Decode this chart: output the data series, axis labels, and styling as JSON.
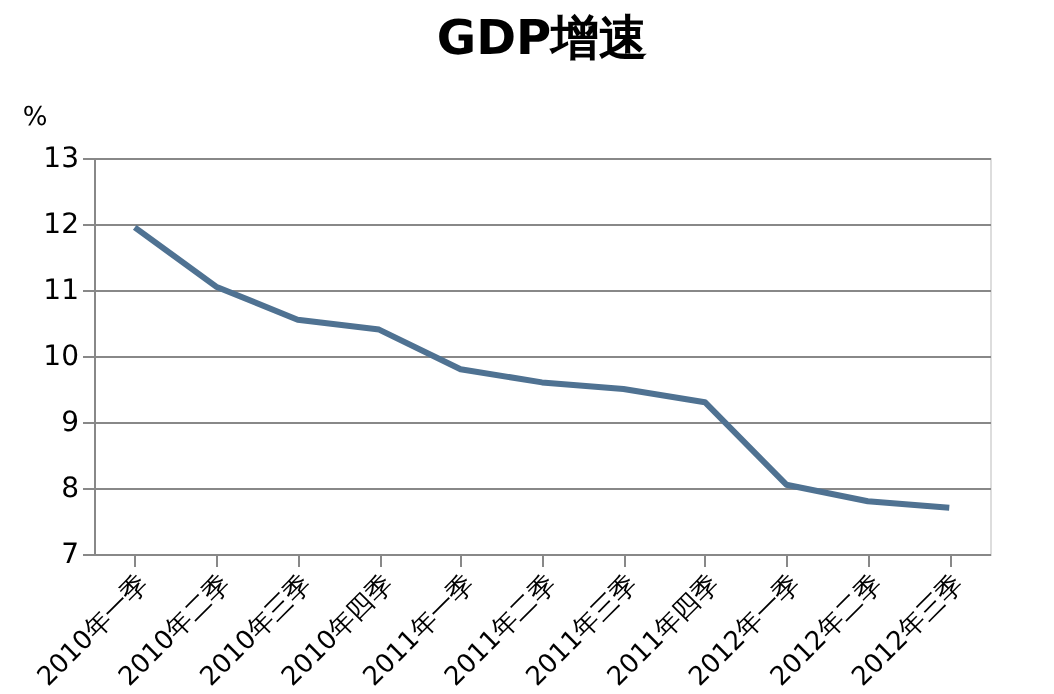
{
  "chart_data": {
    "type": "line",
    "title": "GDP增速",
    "ylabel": "%",
    "categories": [
      "2010年一季",
      "2010年二季",
      "2010年三季",
      "2010年四季",
      "2011年一季",
      "2011年二季",
      "2011年三季",
      "2011年四季",
      "2012年一季",
      "2012年二季",
      "2012年三季"
    ],
    "series": [
      {
        "color": "#4f7292",
        "values": [
          11.95,
          11.05,
          10.55,
          10.4,
          9.8,
          9.6,
          9.5,
          9.3,
          8.05,
          7.8,
          7.7
        ]
      }
    ],
    "ylim": [
      7,
      13
    ],
    "yticks": [
      7,
      8,
      9,
      10,
      11,
      12,
      13
    ],
    "grid": "y",
    "marker": "none",
    "line_style": "solid"
  }
}
